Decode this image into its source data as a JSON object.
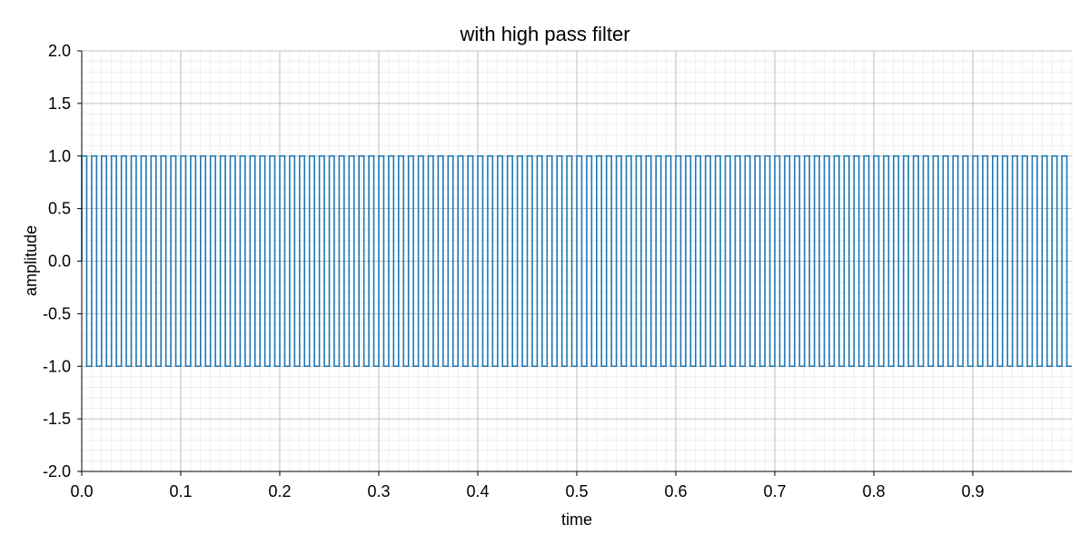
{
  "chart_data": {
    "type": "line",
    "title": "with high pass filter",
    "xlabel": "time",
    "ylabel": "amplitude",
    "xlim": [
      0.0,
      1.0
    ],
    "ylim": [
      -2.0,
      2.0
    ],
    "x_ticks": [
      "0.0",
      "0.1",
      "0.2",
      "0.3",
      "0.4",
      "0.5",
      "0.6",
      "0.7",
      "0.8",
      "0.9"
    ],
    "x_tick_values": [
      0.0,
      0.1,
      0.2,
      0.3,
      0.4,
      0.5,
      0.6,
      0.7,
      0.8,
      0.9
    ],
    "y_ticks": [
      "2.0",
      "1.5",
      "1.0",
      "0.5",
      "0.0",
      "-0.5",
      "-1.0",
      "-1.5",
      "-2.0"
    ],
    "y_tick_values": [
      2.0,
      1.5,
      1.0,
      0.5,
      0.0,
      -0.5,
      -1.0,
      -1.5,
      -2.0
    ],
    "grid": true,
    "minor_grid": true,
    "series": [
      {
        "color": "#1f77b4",
        "signal": {
          "kind": "square-wave",
          "frequency_hz": 100,
          "amplitude": 1.0,
          "time_start": 0.0,
          "time_end": 1.0
        }
      }
    ]
  }
}
